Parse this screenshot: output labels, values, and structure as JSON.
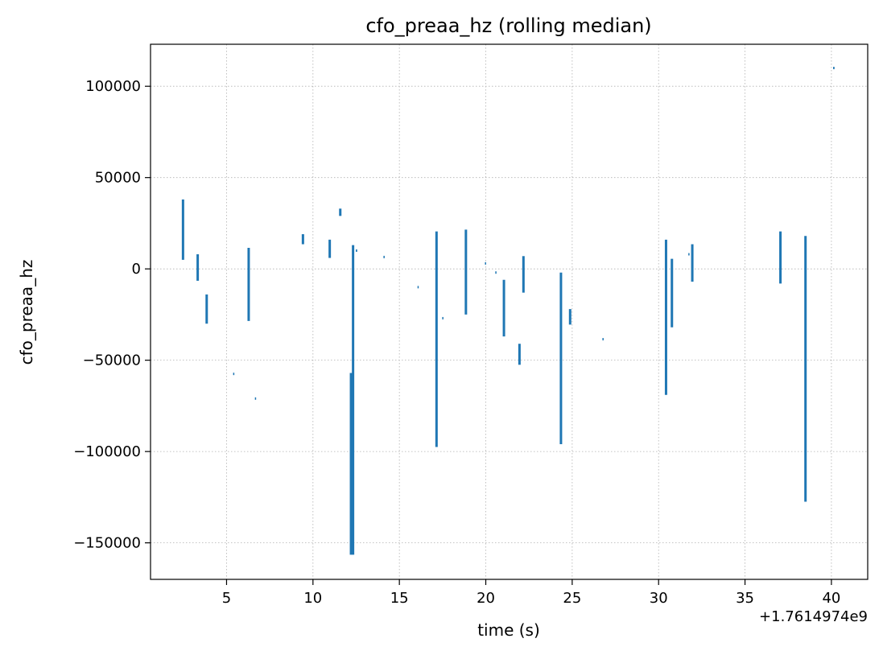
{
  "chart_data": {
    "type": "line",
    "title": "cfo_preaa_hz (rolling median)",
    "xlabel": "time (s)",
    "ylabel": "cfo_preaa_hz",
    "x_offset_label": "+1.7614974e9",
    "xlim": [
      0.6,
      42.1
    ],
    "ylim": [
      -170000,
      123000
    ],
    "xticks": [
      5,
      10,
      15,
      20,
      25,
      30,
      35,
      40
    ],
    "xtick_labels": [
      "5",
      "10",
      "15",
      "20",
      "25",
      "30",
      "35",
      "40"
    ],
    "yticks": [
      100000,
      50000,
      0,
      -50000,
      -100000,
      -150000
    ],
    "ytick_labels": [
      "100000",
      "50000",
      "0",
      "−50000",
      "−100000",
      "−150000"
    ],
    "grid": true,
    "color": "#1f77b4",
    "series": [
      {
        "segments": [
          [
            [
              2.48,
              38000
            ],
            [
              2.48,
              5000
            ]
          ],
          [
            [
              3.33,
              8000
            ],
            [
              3.33,
              -6500
            ]
          ],
          [
            [
              3.85,
              -14000
            ],
            [
              3.85,
              -30000
            ]
          ],
          [
            [
              5.38,
              -57500
            ],
            [
              5.45,
              -57500
            ]
          ],
          [
            [
              6.28,
              11500
            ],
            [
              6.28,
              -28500
            ]
          ],
          [
            [
              6.64,
              -71000
            ],
            [
              6.71,
              -71000
            ]
          ],
          [
            [
              9.42,
              19000
            ],
            [
              9.42,
              13500
            ]
          ],
          [
            [
              10.97,
              16000
            ],
            [
              10.97,
              6000
            ]
          ],
          [
            [
              11.58,
              33000
            ],
            [
              11.58,
              29000
            ]
          ],
          [
            [
              12.2,
              -57000
            ],
            [
              12.2,
              -156500
            ]
          ],
          [
            [
              12.32,
              13000
            ],
            [
              12.32,
              -156500
            ]
          ],
          [
            [
              12.48,
              10000
            ],
            [
              12.56,
              10000
            ]
          ],
          [
            [
              14.08,
              6500
            ],
            [
              14.15,
              6500
            ]
          ],
          [
            [
              16.05,
              -10000
            ],
            [
              16.12,
              -10000
            ]
          ],
          [
            [
              17.15,
              20500
            ],
            [
              17.15,
              -97500
            ]
          ],
          [
            [
              17.48,
              -27000
            ],
            [
              17.55,
              -27000
            ]
          ],
          [
            [
              18.85,
              21500
            ],
            [
              18.85,
              -25000
            ]
          ],
          [
            [
              19.95,
              3000
            ],
            [
              20.02,
              3000
            ]
          ],
          [
            [
              20.55,
              -2000
            ],
            [
              20.62,
              -2000
            ]
          ],
          [
            [
              21.05,
              -6000
            ],
            [
              21.05,
              -37000
            ]
          ],
          [
            [
              21.95,
              -41000
            ],
            [
              21.95,
              -52500
            ]
          ],
          [
            [
              22.18,
              7000
            ],
            [
              22.18,
              -13000
            ]
          ],
          [
            [
              24.35,
              -2000
            ],
            [
              24.35,
              -96000
            ]
          ],
          [
            [
              24.88,
              -22000
            ],
            [
              24.88,
              -30500
            ]
          ],
          [
            [
              26.75,
              -38500
            ],
            [
              26.82,
              -38500
            ]
          ],
          [
            [
              30.43,
              16000
            ],
            [
              30.43,
              -69000
            ]
          ],
          [
            [
              30.77,
              5500
            ],
            [
              30.77,
              -32000
            ]
          ],
          [
            [
              31.72,
              8000
            ],
            [
              31.79,
              8000
            ]
          ],
          [
            [
              31.95,
              13500
            ],
            [
              31.95,
              -7000
            ]
          ],
          [
            [
              37.05,
              20500
            ],
            [
              37.05,
              -8000
            ]
          ],
          [
            [
              38.5,
              18000
            ],
            [
              38.5,
              -127500
            ]
          ],
          [
            [
              40.1,
              110000
            ],
            [
              40.18,
              110000
            ]
          ]
        ]
      }
    ]
  }
}
